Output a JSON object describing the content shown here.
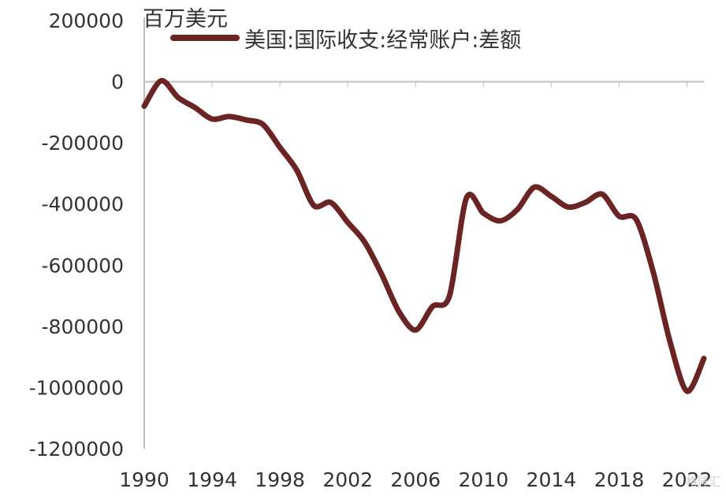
{
  "colors": {
    "series": "#6b2424",
    "axis": "#bfbfbf",
    "text": "#333333"
  },
  "watermark_text": "格隆汇",
  "chart_data": {
    "type": "line",
    "unit_label": "百万美元",
    "legend_position": "top",
    "grid": false,
    "xlim": [
      1990,
      2023
    ],
    "ylim": [
      -1200000,
      200000
    ],
    "x_ticks": [
      "1990",
      "1994",
      "1998",
      "2002",
      "2006",
      "2010",
      "2014",
      "2018",
      "2022"
    ],
    "y_ticks": [
      "200000",
      "0",
      "-200000",
      "-400000",
      "-600000",
      "-800000",
      "-1000000",
      "-1200000"
    ],
    "x": [
      1990,
      1991,
      1992,
      1993,
      1994,
      1995,
      1996,
      1997,
      1998,
      1999,
      2000,
      2001,
      2002,
      2003,
      2004,
      2005,
      2006,
      2007,
      2008,
      2009,
      2010,
      2011,
      2012,
      2013,
      2014,
      2015,
      2016,
      2017,
      2018,
      2019,
      2020,
      2021,
      2022,
      2023
    ],
    "series": [
      {
        "name": "美国:国际收支:经常账户:差额",
        "values": [
          -80000,
          3000,
          -52000,
          -85000,
          -122000,
          -114000,
          -125000,
          -140000,
          -215000,
          -290000,
          -405000,
          -395000,
          -460000,
          -525000,
          -630000,
          -750000,
          -812000,
          -735000,
          -700000,
          -380000,
          -430000,
          -455000,
          -418000,
          -345000,
          -375000,
          -410000,
          -395000,
          -368000,
          -440000,
          -450000,
          -620000,
          -850000,
          -1012000,
          -905000
        ]
      }
    ]
  }
}
